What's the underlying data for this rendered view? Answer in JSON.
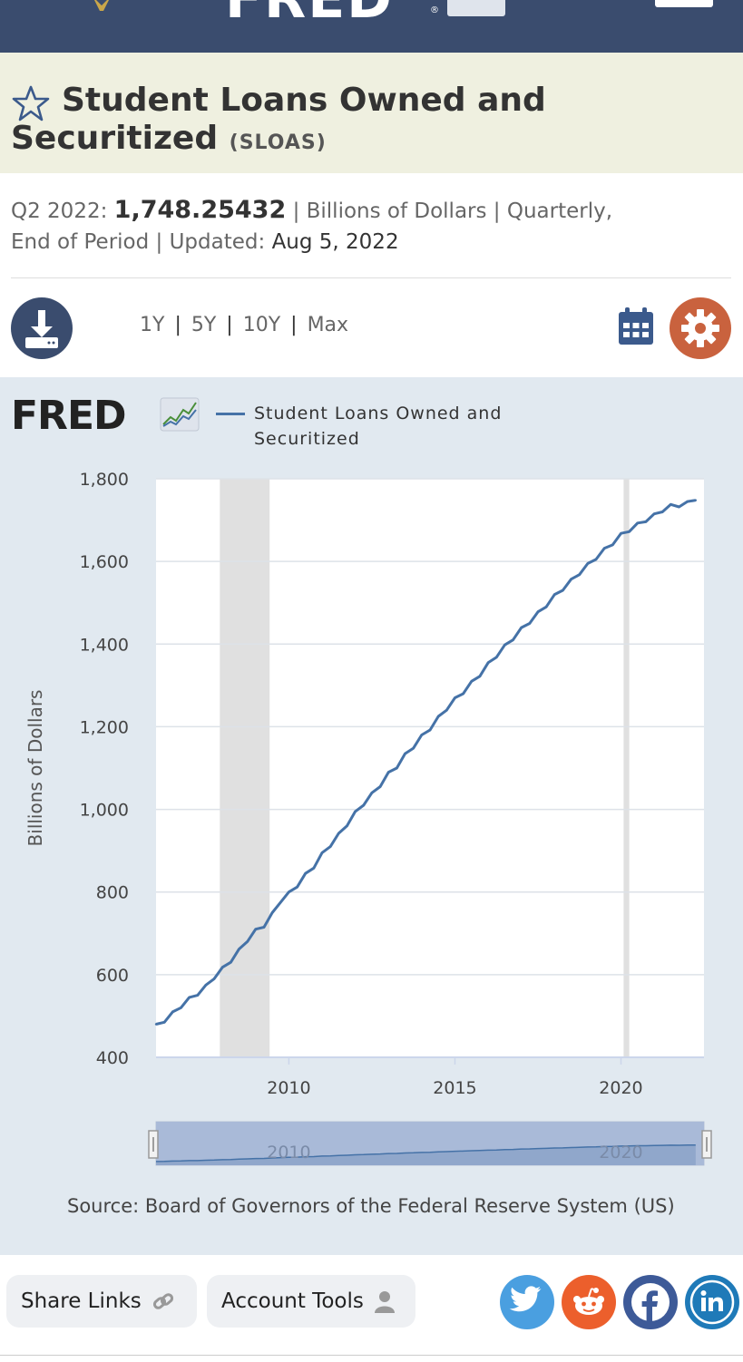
{
  "brand": {
    "name": "FRED"
  },
  "series": {
    "title": "Student Loans Owned and Securitized",
    "code": "(SLOAS)"
  },
  "meta": {
    "period_label": "Q2 2022:",
    "value": "1,748.25432",
    "sep1": "|",
    "units": "Billions of Dollars",
    "sep2": "|",
    "frequency": "Quarterly,",
    "end": "End of Period",
    "sep3": "|",
    "updated_label": "Updated:",
    "updated_date": "Aug 5, 2022"
  },
  "ranges": {
    "r1": "1Y",
    "r2": "5Y",
    "r3": "10Y",
    "r4": "Max",
    "sep": "|"
  },
  "chart_logo": "FRED",
  "legend": {
    "label": "Student Loans Owned and Securitized"
  },
  "source": "Source: Board of Governors of the Federal Reserve System (US)",
  "footer": {
    "share_label": "Share Links",
    "account_label": "Account Tools"
  },
  "icons": {
    "download": "download-icon",
    "calendar": "calendar-icon",
    "gear": "gear-icon",
    "star": "star-icon",
    "link": "link-icon",
    "user": "user-icon",
    "twitter": "twitter-icon",
    "reddit": "reddit-icon",
    "facebook": "facebook-icon",
    "linkedin": "linkedin-icon"
  },
  "colors": {
    "header": "#3a4c6e",
    "title_band": "#eff0e0",
    "series_line": "#4572a7",
    "recession": "#e0e0e0",
    "panel": "#e1e9f0",
    "gear": "#c9623e",
    "twitter": "#4a9fe0",
    "reddit": "#ec5f2c",
    "facebook": "#3d5a98",
    "linkedin": "#1f7ab8"
  },
  "chart_data": {
    "type": "line",
    "title": "",
    "xlabel": "",
    "ylabel": "Billions of Dollars",
    "xlim": [
      2006.0,
      2022.5
    ],
    "ylim": [
      400,
      1800
    ],
    "y_ticks": [
      400,
      600,
      800,
      1000,
      1200,
      1400,
      1600,
      1800
    ],
    "y_tick_labels": [
      "400",
      "600",
      "800",
      "1,000",
      "1,200",
      "1,400",
      "1,600",
      "1,800"
    ],
    "x_ticks": [
      2010,
      2015,
      2020
    ],
    "x_tick_labels": [
      "2010",
      "2015",
      "2020"
    ],
    "grid": true,
    "legend": "top",
    "recessions": [
      [
        2007.92,
        2009.42
      ],
      [
        2020.08,
        2020.25
      ]
    ],
    "series": [
      {
        "name": "Student Loans Owned and Securitized",
        "x": [
          2006.0,
          2006.25,
          2006.5,
          2006.75,
          2007.0,
          2007.25,
          2007.5,
          2007.75,
          2008.0,
          2008.25,
          2008.5,
          2008.75,
          2009.0,
          2009.25,
          2009.5,
          2009.75,
          2010.0,
          2010.25,
          2010.5,
          2010.75,
          2011.0,
          2011.25,
          2011.5,
          2011.75,
          2012.0,
          2012.25,
          2012.5,
          2012.75,
          2013.0,
          2013.25,
          2013.5,
          2013.75,
          2014.0,
          2014.25,
          2014.5,
          2014.75,
          2015.0,
          2015.25,
          2015.5,
          2015.75,
          2016.0,
          2016.25,
          2016.5,
          2016.75,
          2017.0,
          2017.25,
          2017.5,
          2017.75,
          2018.0,
          2018.25,
          2018.5,
          2018.75,
          2019.0,
          2019.25,
          2019.5,
          2019.75,
          2020.0,
          2020.25,
          2020.5,
          2020.75,
          2021.0,
          2021.25,
          2021.5,
          2021.75,
          2022.0,
          2022.25
        ],
        "values": [
          480,
          485,
          510,
          520,
          545,
          550,
          575,
          590,
          618,
          630,
          662,
          680,
          710,
          715,
          750,
          775,
          800,
          812,
          845,
          858,
          895,
          910,
          942,
          960,
          995,
          1010,
          1040,
          1055,
          1090,
          1100,
          1135,
          1148,
          1180,
          1192,
          1225,
          1240,
          1270,
          1280,
          1310,
          1322,
          1355,
          1368,
          1398,
          1410,
          1440,
          1450,
          1478,
          1490,
          1520,
          1530,
          1557,
          1568,
          1595,
          1605,
          1632,
          1640,
          1668,
          1672,
          1693,
          1696,
          1715,
          1720,
          1738,
          1732,
          1745,
          1748
        ]
      }
    ]
  },
  "scrubber": {
    "label_left": "2010",
    "label_right": "2020"
  }
}
